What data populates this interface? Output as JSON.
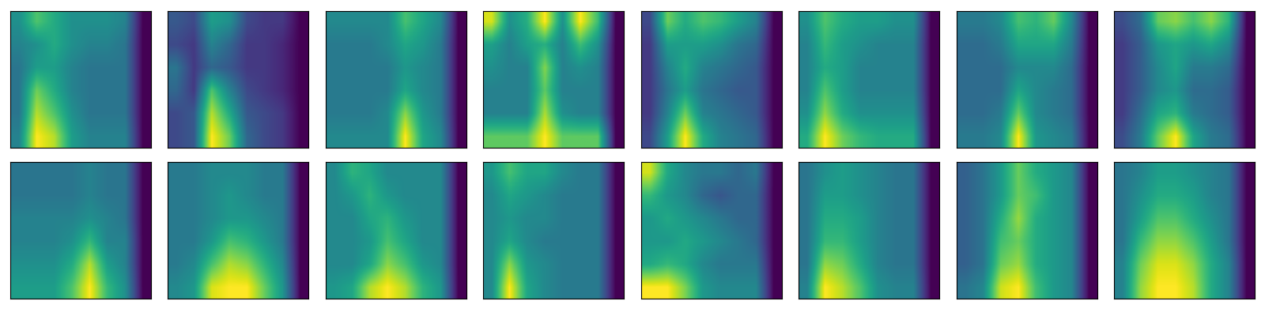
{
  "chart_data": [
    {
      "type": "heatmap",
      "tick_labels": false,
      "cells": [
        [
          0.5,
          0.7,
          0.6,
          0.5,
          0.5,
          0.5,
          0.45,
          0.05
        ],
        [
          0.45,
          0.5,
          0.6,
          0.5,
          0.45,
          0.45,
          0.4,
          0.05
        ],
        [
          0.4,
          0.55,
          0.55,
          0.45,
          0.4,
          0.4,
          0.4,
          0.05
        ],
        [
          0.4,
          0.75,
          0.6,
          0.45,
          0.4,
          0.4,
          0.4,
          0.05
        ],
        [
          0.4,
          0.85,
          0.7,
          0.5,
          0.4,
          0.4,
          0.4,
          0.05
        ],
        [
          0.45,
          0.95,
          0.85,
          0.55,
          0.45,
          0.45,
          0.45,
          0.05
        ]
      ]
    },
    {
      "type": "heatmap",
      "tick_labels": false,
      "cells": [
        [
          0.3,
          0.25,
          0.55,
          0.5,
          0.25,
          0.2,
          0.2,
          0.05
        ],
        [
          0.25,
          0.2,
          0.45,
          0.35,
          0.2,
          0.2,
          0.15,
          0.05
        ],
        [
          0.4,
          0.2,
          0.35,
          0.3,
          0.2,
          0.2,
          0.15,
          0.05
        ],
        [
          0.35,
          0.2,
          0.7,
          0.45,
          0.25,
          0.2,
          0.15,
          0.05
        ],
        [
          0.25,
          0.3,
          0.85,
          0.6,
          0.3,
          0.25,
          0.2,
          0.05
        ],
        [
          0.25,
          0.3,
          0.95,
          0.75,
          0.35,
          0.25,
          0.2,
          0.05
        ]
      ]
    },
    {
      "type": "heatmap",
      "tick_labels": false,
      "cells": [
        [
          0.45,
          0.45,
          0.45,
          0.45,
          0.65,
          0.55,
          0.45,
          0.05
        ],
        [
          0.4,
          0.4,
          0.4,
          0.45,
          0.55,
          0.5,
          0.4,
          0.05
        ],
        [
          0.4,
          0.4,
          0.4,
          0.4,
          0.5,
          0.45,
          0.4,
          0.05
        ],
        [
          0.4,
          0.4,
          0.4,
          0.4,
          0.55,
          0.45,
          0.4,
          0.05
        ],
        [
          0.4,
          0.4,
          0.4,
          0.45,
          0.75,
          0.5,
          0.4,
          0.05
        ],
        [
          0.45,
          0.45,
          0.45,
          0.45,
          0.9,
          0.55,
          0.45,
          0.05
        ]
      ]
    },
    {
      "type": "heatmap",
      "tick_labels": false,
      "cells": [
        [
          0.8,
          0.45,
          0.55,
          0.85,
          0.45,
          0.85,
          0.6,
          0.05
        ],
        [
          0.5,
          0.4,
          0.5,
          0.55,
          0.4,
          0.6,
          0.45,
          0.05
        ],
        [
          0.45,
          0.4,
          0.4,
          0.7,
          0.4,
          0.45,
          0.4,
          0.05
        ],
        [
          0.4,
          0.4,
          0.4,
          0.65,
          0.4,
          0.4,
          0.4,
          0.05
        ],
        [
          0.4,
          0.4,
          0.4,
          0.75,
          0.45,
          0.4,
          0.4,
          0.05
        ],
        [
          0.65,
          0.65,
          0.65,
          0.85,
          0.65,
          0.65,
          0.65,
          0.05
        ]
      ]
    },
    {
      "type": "heatmap",
      "tick_labels": false,
      "cells": [
        [
          0.25,
          0.75,
          0.6,
          0.7,
          0.65,
          0.55,
          0.45,
          0.05
        ],
        [
          0.2,
          0.55,
          0.55,
          0.55,
          0.5,
          0.4,
          0.35,
          0.05
        ],
        [
          0.2,
          0.45,
          0.6,
          0.45,
          0.4,
          0.35,
          0.3,
          0.05
        ],
        [
          0.2,
          0.4,
          0.55,
          0.4,
          0.35,
          0.3,
          0.3,
          0.05
        ],
        [
          0.2,
          0.45,
          0.75,
          0.45,
          0.4,
          0.35,
          0.3,
          0.05
        ],
        [
          0.25,
          0.55,
          0.95,
          0.6,
          0.45,
          0.4,
          0.35,
          0.05
        ]
      ]
    },
    {
      "type": "heatmap",
      "tick_labels": false,
      "cells": [
        [
          0.5,
          0.7,
          0.6,
          0.55,
          0.55,
          0.5,
          0.5,
          0.05
        ],
        [
          0.45,
          0.65,
          0.55,
          0.5,
          0.45,
          0.45,
          0.45,
          0.05
        ],
        [
          0.45,
          0.6,
          0.55,
          0.45,
          0.45,
          0.45,
          0.45,
          0.05
        ],
        [
          0.45,
          0.7,
          0.55,
          0.45,
          0.45,
          0.45,
          0.45,
          0.05
        ],
        [
          0.5,
          0.8,
          0.6,
          0.5,
          0.5,
          0.5,
          0.5,
          0.05
        ],
        [
          0.6,
          0.95,
          0.75,
          0.65,
          0.6,
          0.6,
          0.6,
          0.05
        ]
      ]
    },
    {
      "type": "heatmap",
      "tick_labels": false,
      "cells": [
        [
          0.4,
          0.4,
          0.45,
          0.65,
          0.6,
          0.7,
          0.45,
          0.05
        ],
        [
          0.35,
          0.35,
          0.4,
          0.55,
          0.55,
          0.55,
          0.4,
          0.05
        ],
        [
          0.35,
          0.35,
          0.35,
          0.45,
          0.45,
          0.45,
          0.35,
          0.05
        ],
        [
          0.35,
          0.35,
          0.35,
          0.55,
          0.45,
          0.4,
          0.35,
          0.05
        ],
        [
          0.35,
          0.35,
          0.4,
          0.7,
          0.45,
          0.4,
          0.35,
          0.05
        ],
        [
          0.4,
          0.4,
          0.45,
          0.9,
          0.5,
          0.45,
          0.4,
          0.05
        ]
      ]
    },
    {
      "type": "heatmap",
      "tick_labels": false,
      "cells": [
        [
          0.25,
          0.35,
          0.7,
          0.75,
          0.65,
          0.75,
          0.6,
          0.05
        ],
        [
          0.2,
          0.3,
          0.5,
          0.55,
          0.5,
          0.55,
          0.45,
          0.05
        ],
        [
          0.2,
          0.3,
          0.45,
          0.55,
          0.4,
          0.4,
          0.35,
          0.05
        ],
        [
          0.2,
          0.3,
          0.45,
          0.5,
          0.35,
          0.35,
          0.3,
          0.05
        ],
        [
          0.2,
          0.35,
          0.55,
          0.6,
          0.4,
          0.35,
          0.3,
          0.05
        ],
        [
          0.25,
          0.4,
          0.7,
          0.9,
          0.55,
          0.4,
          0.35,
          0.05
        ]
      ]
    },
    {
      "type": "heatmap",
      "tick_labels": false,
      "cells": [
        [
          0.4,
          0.4,
          0.4,
          0.4,
          0.45,
          0.4,
          0.4,
          0.05
        ],
        [
          0.4,
          0.4,
          0.4,
          0.4,
          0.45,
          0.4,
          0.4,
          0.05
        ],
        [
          0.45,
          0.45,
          0.45,
          0.45,
          0.5,
          0.45,
          0.4,
          0.05
        ],
        [
          0.45,
          0.45,
          0.45,
          0.5,
          0.65,
          0.45,
          0.45,
          0.05
        ],
        [
          0.5,
          0.5,
          0.5,
          0.6,
          0.85,
          0.55,
          0.45,
          0.05
        ],
        [
          0.55,
          0.55,
          0.55,
          0.7,
          0.95,
          0.65,
          0.5,
          0.05
        ]
      ]
    },
    {
      "type": "heatmap",
      "tick_labels": false,
      "cells": [
        [
          0.4,
          0.4,
          0.45,
          0.45,
          0.45,
          0.4,
          0.4,
          0.05
        ],
        [
          0.4,
          0.4,
          0.45,
          0.5,
          0.45,
          0.4,
          0.4,
          0.05
        ],
        [
          0.4,
          0.4,
          0.45,
          0.5,
          0.5,
          0.45,
          0.4,
          0.05
        ],
        [
          0.4,
          0.4,
          0.5,
          0.65,
          0.6,
          0.5,
          0.4,
          0.05
        ],
        [
          0.4,
          0.45,
          0.65,
          0.8,
          0.75,
          0.6,
          0.45,
          0.05
        ],
        [
          0.45,
          0.5,
          0.85,
          0.9,
          0.9,
          0.7,
          0.5,
          0.05
        ]
      ]
    },
    {
      "type": "heatmap",
      "tick_labels": false,
      "cells": [
        [
          0.45,
          0.6,
          0.55,
          0.45,
          0.45,
          0.45,
          0.45,
          0.05
        ],
        [
          0.45,
          0.5,
          0.6,
          0.5,
          0.45,
          0.45,
          0.45,
          0.05
        ],
        [
          0.45,
          0.45,
          0.55,
          0.6,
          0.5,
          0.45,
          0.45,
          0.05
        ],
        [
          0.45,
          0.45,
          0.5,
          0.65,
          0.55,
          0.45,
          0.45,
          0.05
        ],
        [
          0.45,
          0.45,
          0.55,
          0.75,
          0.65,
          0.5,
          0.45,
          0.05
        ],
        [
          0.5,
          0.55,
          0.8,
          0.9,
          0.8,
          0.6,
          0.5,
          0.05
        ]
      ]
    },
    {
      "type": "heatmap",
      "tick_labels": false,
      "cells": [
        [
          0.5,
          0.65,
          0.55,
          0.55,
          0.45,
          0.4,
          0.4,
          0.05
        ],
        [
          0.45,
          0.55,
          0.5,
          0.45,
          0.4,
          0.4,
          0.4,
          0.05
        ],
        [
          0.45,
          0.5,
          0.45,
          0.45,
          0.4,
          0.4,
          0.4,
          0.05
        ],
        [
          0.45,
          0.55,
          0.45,
          0.4,
          0.4,
          0.4,
          0.4,
          0.05
        ],
        [
          0.45,
          0.75,
          0.5,
          0.45,
          0.4,
          0.4,
          0.4,
          0.05
        ],
        [
          0.45,
          0.9,
          0.55,
          0.45,
          0.4,
          0.4,
          0.4,
          0.05
        ]
      ]
    },
    {
      "type": "heatmap",
      "tick_labels": false,
      "cells": [
        [
          0.75,
          0.5,
          0.4,
          0.35,
          0.35,
          0.3,
          0.35,
          0.05
        ],
        [
          0.55,
          0.45,
          0.4,
          0.3,
          0.25,
          0.3,
          0.3,
          0.05
        ],
        [
          0.45,
          0.5,
          0.45,
          0.4,
          0.35,
          0.3,
          0.3,
          0.05
        ],
        [
          0.45,
          0.45,
          0.5,
          0.45,
          0.4,
          0.35,
          0.3,
          0.05
        ],
        [
          0.5,
          0.55,
          0.5,
          0.4,
          0.35,
          0.35,
          0.35,
          0.05
        ],
        [
          0.8,
          0.8,
          0.65,
          0.45,
          0.4,
          0.4,
          0.4,
          0.05
        ]
      ]
    },
    {
      "type": "heatmap",
      "tick_labels": false,
      "cells": [
        [
          0.4,
          0.5,
          0.55,
          0.5,
          0.45,
          0.4,
          0.4,
          0.05
        ],
        [
          0.4,
          0.55,
          0.55,
          0.5,
          0.45,
          0.4,
          0.4,
          0.05
        ],
        [
          0.4,
          0.6,
          0.6,
          0.55,
          0.45,
          0.4,
          0.4,
          0.05
        ],
        [
          0.4,
          0.65,
          0.65,
          0.55,
          0.45,
          0.4,
          0.4,
          0.05
        ],
        [
          0.4,
          0.8,
          0.75,
          0.6,
          0.45,
          0.4,
          0.4,
          0.05
        ],
        [
          0.45,
          0.95,
          0.85,
          0.7,
          0.5,
          0.45,
          0.45,
          0.05
        ]
      ]
    },
    {
      "type": "heatmap",
      "tick_labels": false,
      "cells": [
        [
          0.25,
          0.3,
          0.4,
          0.55,
          0.45,
          0.4,
          0.35,
          0.05
        ],
        [
          0.25,
          0.3,
          0.4,
          0.55,
          0.5,
          0.4,
          0.35,
          0.05
        ],
        [
          0.25,
          0.3,
          0.45,
          0.6,
          0.45,
          0.4,
          0.35,
          0.05
        ],
        [
          0.25,
          0.3,
          0.5,
          0.55,
          0.45,
          0.4,
          0.35,
          0.05
        ],
        [
          0.25,
          0.3,
          0.55,
          0.6,
          0.45,
          0.4,
          0.35,
          0.05
        ],
        [
          0.3,
          0.35,
          0.65,
          0.7,
          0.5,
          0.4,
          0.35,
          0.05
        ]
      ]
    },
    {
      "type": "heatmap",
      "tick_labels": false,
      "cells": [
        [
          0.4,
          0.45,
          0.55,
          0.55,
          0.5,
          0.45,
          0.4,
          0.05
        ],
        [
          0.4,
          0.5,
          0.6,
          0.6,
          0.55,
          0.45,
          0.4,
          0.05
        ],
        [
          0.4,
          0.55,
          0.7,
          0.7,
          0.6,
          0.5,
          0.4,
          0.05
        ],
        [
          0.4,
          0.65,
          0.8,
          0.8,
          0.7,
          0.55,
          0.4,
          0.05
        ],
        [
          0.45,
          0.75,
          0.9,
          0.9,
          0.8,
          0.6,
          0.45,
          0.05
        ],
        [
          0.45,
          0.8,
          0.95,
          0.95,
          0.85,
          0.6,
          0.45,
          0.05
        ]
      ]
    }
  ]
}
